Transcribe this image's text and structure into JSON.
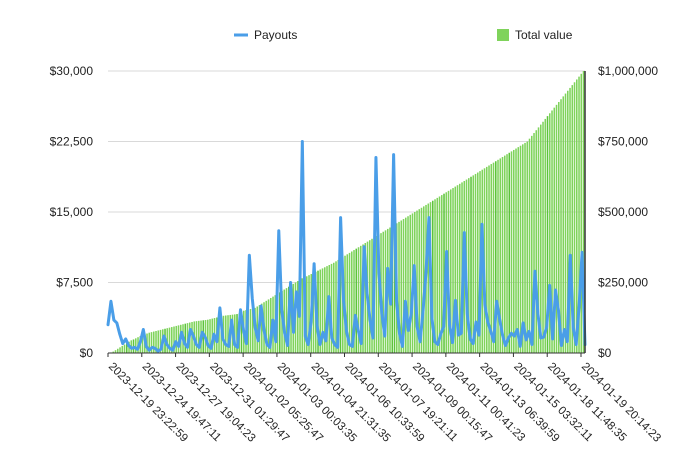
{
  "chart_data": {
    "type": "bar+line",
    "title": "",
    "legend": {
      "placement": "top",
      "items": [
        {
          "name": "Payouts",
          "color": "#4a9ee8",
          "kind": "line"
        },
        {
          "name": "Total value",
          "color": "#7fd35b",
          "kind": "bar"
        }
      ]
    },
    "left_axis": {
      "ylim": [
        0,
        30000
      ],
      "ticks": [
        0,
        7500,
        15000,
        22500,
        30000
      ],
      "tick_labels": [
        "$0",
        "$7,500",
        "$15,000",
        "$22,500",
        "$30,000"
      ]
    },
    "right_axis": {
      "ylim": [
        0,
        1000000
      ],
      "ticks": [
        0,
        250000,
        500000,
        750000,
        1000000
      ],
      "tick_labels": [
        "$0",
        "$250,000",
        "$500,000",
        "$750,000",
        "$1,000,000"
      ]
    },
    "x_tick_labels": [
      "2023-12-19 23:22:59",
      "2023-12-24 19:47:11",
      "2023-12-27 19:04:23",
      "2023-12-31 01:29:47",
      "2024-01-02 05:25:47",
      "2024-01-03 00:03:35",
      "2024-01-04 21:31:35",
      "2024-01-06 10:33:59",
      "2024-01-07 19:21:11",
      "2024-01-09 00:15:47",
      "2024-01-11 00:41:23",
      "2024-01-13 06:39:59",
      "2024-01-15 03:32:11",
      "2024-01-18 11:48:35",
      "2024-01-19 20:14:23"
    ],
    "series": [
      {
        "name": "Total value",
        "axis": "right",
        "type": "bar",
        "color": "#7fd35b",
        "values": [
          0,
          2000,
          5000,
          10000,
          15000,
          20000,
          25000,
          30000,
          35000,
          40000,
          45000,
          48000,
          52000,
          56000,
          60000,
          63000,
          66000,
          69000,
          72000,
          74000,
          76000,
          78000,
          80000,
          82000,
          84000,
          86000,
          88000,
          90000,
          92000,
          94000,
          96000,
          98000,
          100000,
          102000,
          104000,
          106000,
          108000,
          110000,
          112000,
          113000,
          114000,
          115000,
          116000,
          117000,
          118000,
          120000,
          122000,
          124000,
          126000,
          128000,
          130000,
          132000,
          133000,
          134000,
          135000,
          136000,
          137000,
          138000,
          140000,
          145000,
          150000,
          152000,
          154000,
          156000,
          158000,
          160000,
          165000,
          170000,
          175000,
          180000,
          185000,
          190000,
          195000,
          200000,
          205000,
          210000,
          215000,
          220000,
          225000,
          230000,
          235000,
          240000,
          245000,
          250000,
          255000,
          260000,
          265000,
          268000,
          272000,
          276000,
          280000,
          284000,
          288000,
          292000,
          296000,
          300000,
          304000,
          308000,
          312000,
          316000,
          320000,
          325000,
          330000,
          335000,
          340000,
          345000,
          350000,
          355000,
          360000,
          365000,
          370000,
          375000,
          380000,
          385000,
          390000,
          395000,
          400000,
          405000,
          410000,
          415000,
          420000,
          425000,
          430000,
          435000,
          440000,
          445000,
          450000,
          455000,
          460000,
          465000,
          470000,
          475000,
          480000,
          485000,
          490000,
          495000,
          500000,
          505000,
          510000,
          515000,
          520000,
          525000,
          530000,
          535000,
          540000,
          545000,
          550000,
          555000,
          560000,
          565000,
          570000,
          575000,
          580000,
          585000,
          590000,
          595000,
          600000,
          605000,
          610000,
          615000,
          620000,
          625000,
          630000,
          635000,
          640000,
          645000,
          650000,
          655000,
          660000,
          665000,
          670000,
          675000,
          680000,
          685000,
          690000,
          695000,
          700000,
          705000,
          710000,
          715000,
          720000,
          725000,
          730000,
          735000,
          740000,
          745000,
          750000,
          760000,
          770000,
          780000,
          790000,
          800000,
          810000,
          820000,
          830000,
          840000,
          850000,
          860000,
          870000,
          880000,
          890000,
          900000,
          910000,
          920000,
          930000,
          940000,
          950000,
          960000,
          970000,
          980000,
          990000,
          1000000
        ]
      },
      {
        "name": "Payouts",
        "axis": "left",
        "type": "line",
        "color": "#4a9ee8",
        "values": [
          3000,
          5500,
          3500,
          3200,
          2000,
          1000,
          1500,
          800,
          500,
          600,
          400,
          1200,
          2500,
          700,
          300,
          600,
          500,
          200,
          400,
          1800,
          900,
          500,
          300,
          1200,
          700,
          2200,
          1000,
          600,
          2500,
          1800,
          900,
          600,
          2200,
          1700,
          800,
          500,
          2000,
          1200,
          4800,
          1500,
          900,
          700,
          3500,
          900,
          600,
          4600,
          2500,
          1000,
          10400,
          5800,
          2700,
          1300,
          5000,
          2400,
          900,
          600,
          3500,
          1200,
          13000,
          4600,
          2100,
          800,
          7500,
          2200,
          6500,
          3900,
          22500,
          1800,
          900,
          3400,
          9500,
          2900,
          900,
          2200,
          1300,
          6000,
          1600,
          900,
          600,
          14400,
          5600,
          2300,
          900,
          700,
          4000,
          2400,
          1000,
          11300,
          6300,
          3500,
          1600,
          20800,
          8600,
          4200,
          1800,
          9000,
          5200,
          21100,
          5600,
          2100,
          700,
          5500,
          2400,
          4200,
          9300,
          2800,
          1200,
          4500,
          8600,
          14400,
          3700,
          1200,
          900,
          2000,
          2800,
          10800,
          3000,
          1100,
          5600,
          1900,
          2100,
          12800,
          4200,
          1500,
          1000,
          3300,
          1900,
          13700,
          5100,
          3300,
          2300,
          1200,
          5500,
          3600,
          1900,
          800,
          1600,
          2100,
          1800,
          2500,
          700,
          3200,
          1400,
          2300,
          900,
          8700,
          4200,
          1600,
          1700,
          2800,
          7200,
          1500,
          6700,
          4500,
          800,
          2500,
          1200,
          10400,
          2700,
          900,
          5000,
          10700,
          900
        ]
      }
    ]
  }
}
